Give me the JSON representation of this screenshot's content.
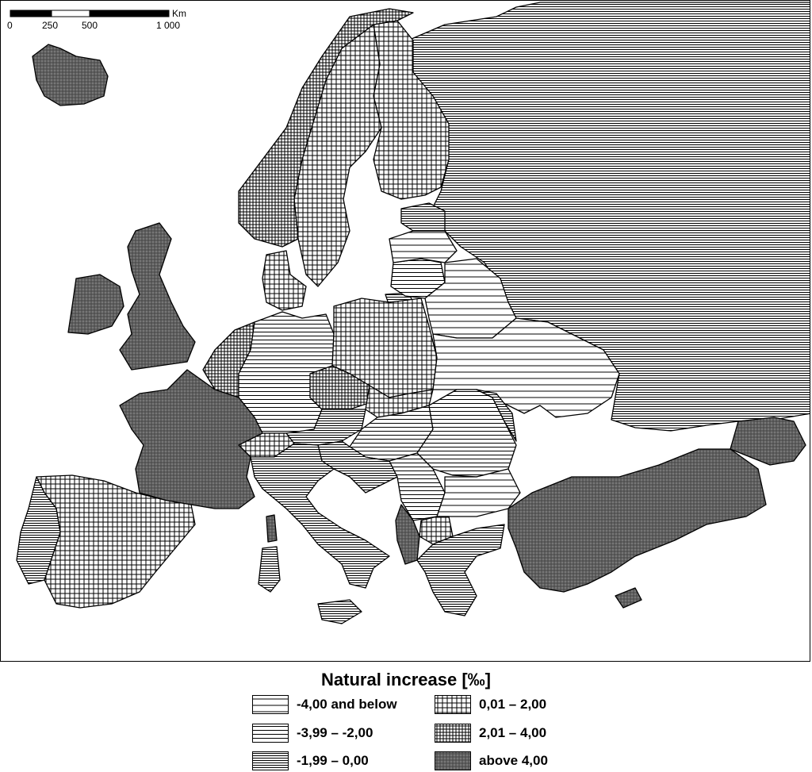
{
  "scale_bar": {
    "ticks": [
      "0",
      "250",
      "500",
      "1 000"
    ],
    "unit": "Km"
  },
  "legend": {
    "title": "Natural increase [‰]",
    "classes": [
      {
        "label": "-4,00 and below",
        "pattern": "hlines-sparse",
        "color": "#ffffff"
      },
      {
        "label": "-3,99 – -2,00",
        "pattern": "hlines-medium",
        "color": "#ffffff"
      },
      {
        "label": "-1,99 – 0,00",
        "pattern": "hlines-dense",
        "color": "#ffffff"
      },
      {
        "label": "0,01 – 2,00",
        "pattern": "grid-sparse",
        "color": "#ffffff"
      },
      {
        "label": "2,01 – 4,00",
        "pattern": "grid-dense",
        "color": "#ffffff"
      },
      {
        "label": "above 4,00",
        "pattern": "crosshatch-dark",
        "color": "#777777"
      }
    ]
  },
  "map": {
    "regions": [
      {
        "name": "Iceland",
        "class": "above 4,00"
      },
      {
        "name": "Ireland",
        "class": "above 4,00"
      },
      {
        "name": "United Kingdom",
        "class": "above 4,00"
      },
      {
        "name": "France",
        "class": "above 4,00"
      },
      {
        "name": "Turkey",
        "class": "above 4,00"
      },
      {
        "name": "Albania",
        "class": "above 4,00"
      },
      {
        "name": "Caucasus",
        "class": "above 4,00"
      },
      {
        "name": "Cyprus",
        "class": "above 4,00"
      },
      {
        "name": "Norway",
        "class": "2,01 – 4,00"
      },
      {
        "name": "Netherlands",
        "class": "2,01 – 4,00"
      },
      {
        "name": "Sweden",
        "class": "0,01 – 2,00"
      },
      {
        "name": "Finland",
        "class": "0,01 – 2,00"
      },
      {
        "name": "Denmark",
        "class": "0,01 – 2,00"
      },
      {
        "name": "Poland",
        "class": "0,01 – 2,00"
      },
      {
        "name": "Spain",
        "class": "0,01 – 2,00"
      },
      {
        "name": "Slovakia",
        "class": "0,01 – 2,00"
      },
      {
        "name": "Switzerland",
        "class": "0,01 – 2,00"
      },
      {
        "name": "Macedonia",
        "class": "0,01 – 2,00"
      },
      {
        "name": "Portugal",
        "class": "-1,99 – 0,00"
      },
      {
        "name": "Italy",
        "class": "-1,99 – 0,00"
      },
      {
        "name": "Greece",
        "class": "-1,99 – 0,00"
      },
      {
        "name": "Russia",
        "class": "-1,99 – 0,00"
      },
      {
        "name": "Estonia",
        "class": "-1,99 – 0,00"
      },
      {
        "name": "Austria",
        "class": "-1,99 – 0,00"
      },
      {
        "name": "Moldova",
        "class": "-1,99 – 0,00"
      },
      {
        "name": "Croatia",
        "class": "-1,99 – 0,00"
      },
      {
        "name": "Bosnia",
        "class": "-1,99 – 0,00"
      },
      {
        "name": "Germany",
        "class": "-3,99 – -2,00"
      },
      {
        "name": "Hungary",
        "class": "-3,99 – -2,00"
      },
      {
        "name": "Romania",
        "class": "-3,99 – -2,00"
      },
      {
        "name": "Lithuania",
        "class": "-3,99 – -2,00"
      },
      {
        "name": "Serbia",
        "class": "-3,99 – -2,00"
      },
      {
        "name": "Latvia",
        "class": "-4,00 and below"
      },
      {
        "name": "Belarus",
        "class": "-4,00 and below"
      },
      {
        "name": "Ukraine",
        "class": "-4,00 and below"
      },
      {
        "name": "Bulgaria",
        "class": "-4,00 and below"
      }
    ]
  }
}
